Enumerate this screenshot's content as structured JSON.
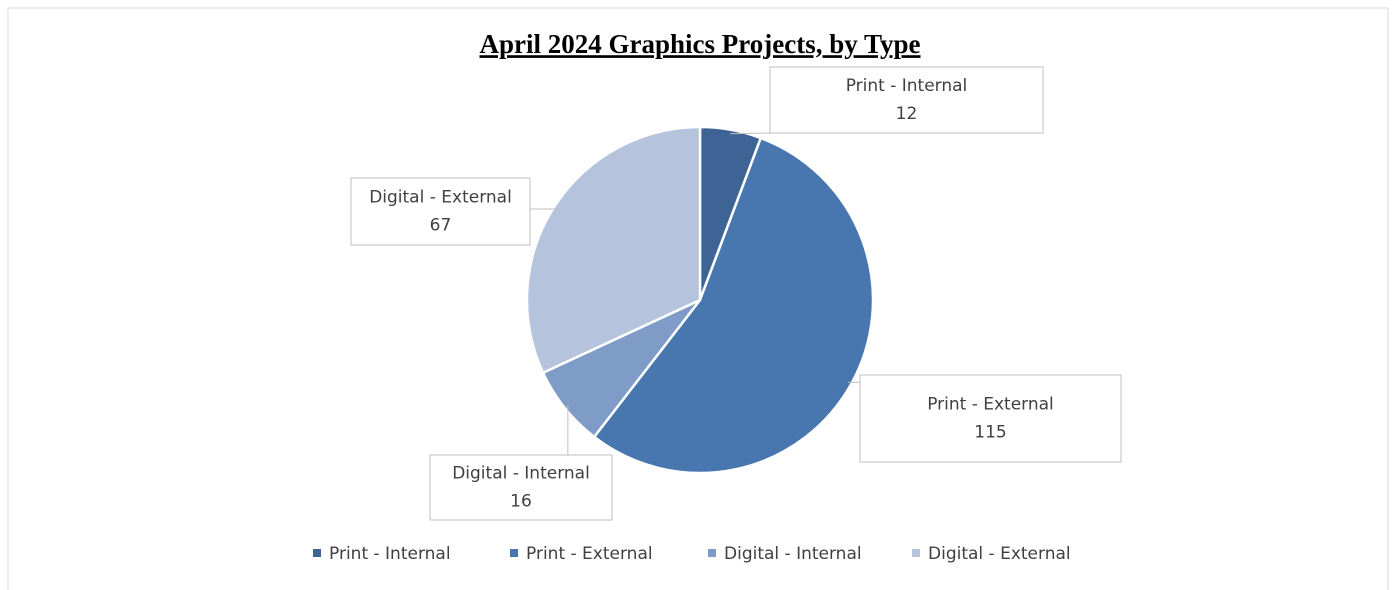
{
  "chart_data": {
    "type": "pie",
    "title": "April 2024 Graphics Projects, by Type",
    "categories": [
      "Print - Internal",
      "Print - External",
      "Digital - Internal",
      "Digital - External"
    ],
    "values": [
      12,
      115,
      16,
      67
    ],
    "colors": [
      "#3d6494",
      "#4877b0",
      "#7f9cc8",
      "#b5c3dc"
    ],
    "legend": "bottom"
  }
}
